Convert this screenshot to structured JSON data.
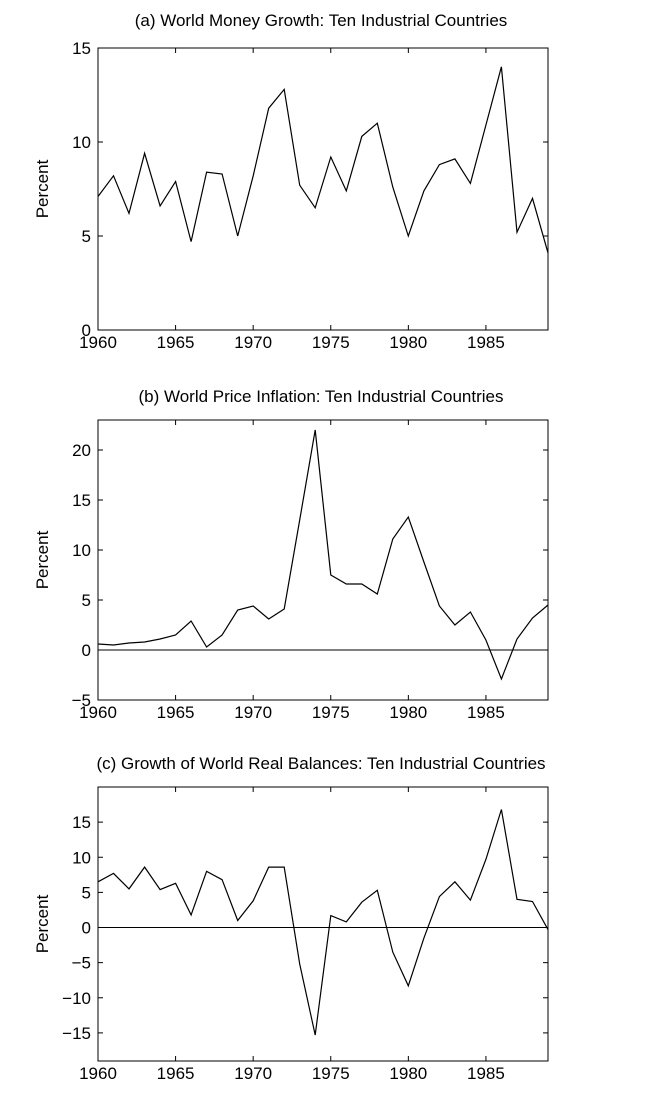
{
  "chart_data": [
    {
      "type": "line",
      "title": "(a) World Money Growth: Ten Industrial Countries",
      "ylabel": "Percent",
      "color": "#000000",
      "x": [
        1960,
        1961,
        1962,
        1963,
        1964,
        1965,
        1966,
        1967,
        1968,
        1969,
        1970,
        1971,
        1972,
        1973,
        1974,
        1975,
        1976,
        1977,
        1978,
        1979,
        1980,
        1981,
        1982,
        1983,
        1984,
        1985,
        1986,
        1987,
        1988,
        1989
      ],
      "values": [
        7.1,
        8.2,
        6.2,
        9.4,
        6.6,
        7.9,
        4.7,
        8.4,
        8.3,
        5.0,
        8.2,
        11.8,
        12.8,
        7.7,
        6.5,
        9.2,
        7.4,
        10.3,
        11.0,
        7.6,
        5.0,
        7.4,
        8.8,
        9.1,
        7.8,
        10.9,
        14.0,
        5.2,
        7.0,
        4.1
      ],
      "xlim": [
        1960,
        1989
      ],
      "xticks": [
        1960,
        1965,
        1970,
        1975,
        1980,
        1985
      ],
      "ylim": [
        0,
        15
      ],
      "yticks": [
        0,
        5,
        10,
        15
      ],
      "zero_line": false
    },
    {
      "type": "line",
      "title": "(b) World Price Inflation: Ten Industrial Countries",
      "ylabel": "Percent",
      "color": "#000000",
      "x": [
        1960,
        1961,
        1962,
        1963,
        1964,
        1965,
        1966,
        1967,
        1968,
        1969,
        1970,
        1971,
        1972,
        1973,
        1974,
        1975,
        1976,
        1977,
        1978,
        1979,
        1980,
        1981,
        1982,
        1983,
        1984,
        1985,
        1986,
        1987,
        1988,
        1989
      ],
      "values": [
        0.6,
        0.5,
        0.7,
        0.8,
        1.1,
        1.5,
        2.9,
        0.3,
        1.5,
        4.0,
        4.4,
        3.1,
        4.1,
        13.0,
        22.0,
        7.5,
        6.6,
        6.6,
        5.6,
        11.1,
        13.3,
        8.8,
        4.4,
        2.5,
        3.8,
        1.0,
        -2.9,
        1.1,
        3.2,
        4.5
      ],
      "xlim": [
        1960,
        1989
      ],
      "xticks": [
        1960,
        1965,
        1970,
        1975,
        1980,
        1985
      ],
      "ylim": [
        -5,
        23
      ],
      "yticks": [
        {
          "value": -5,
          "label": "−5"
        },
        0,
        5,
        10,
        15,
        20
      ],
      "zero_line": true
    },
    {
      "type": "line",
      "title": "(c) Growth of World Real Balances: Ten Industrial Countries",
      "ylabel": "Percent",
      "color": "#000000",
      "x": [
        1960,
        1961,
        1962,
        1963,
        1964,
        1965,
        1966,
        1967,
        1968,
        1969,
        1970,
        1971,
        1972,
        1973,
        1974,
        1975,
        1976,
        1977,
        1978,
        1979,
        1980,
        1981,
        1982,
        1983,
        1984,
        1985,
        1986,
        1987,
        1988,
        1989
      ],
      "values": [
        6.5,
        7.7,
        5.5,
        8.6,
        5.4,
        6.3,
        1.8,
        8.0,
        6.8,
        1.0,
        3.8,
        8.6,
        8.6,
        -5.2,
        -15.3,
        1.7,
        0.8,
        3.6,
        5.3,
        -3.5,
        -8.3,
        -1.5,
        4.4,
        6.5,
        3.9,
        9.7,
        16.8,
        4.0,
        3.7,
        -0.3
      ],
      "xlim": [
        1960,
        1989
      ],
      "xticks": [
        1960,
        1965,
        1970,
        1975,
        1980,
        1985
      ],
      "ylim": [
        -19,
        20
      ],
      "yticks": [
        {
          "value": -15,
          "label": "−15"
        },
        {
          "value": -10,
          "label": "−10"
        },
        {
          "value": -5,
          "label": "−5"
        },
        0,
        5,
        10,
        15
      ],
      "zero_line": true
    }
  ]
}
